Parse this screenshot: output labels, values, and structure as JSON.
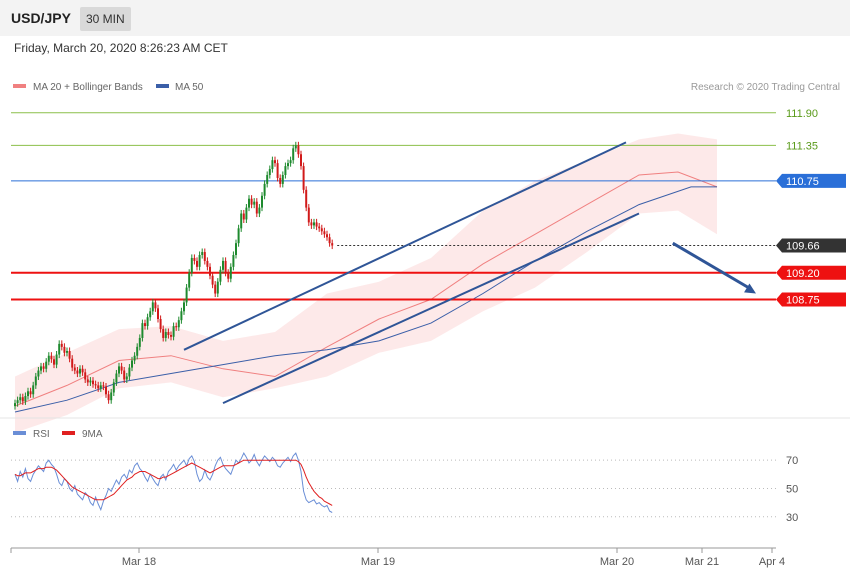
{
  "header": {
    "symbol": "USD/JPY",
    "timeframe": "30 MIN",
    "datetime": "Friday, March 20, 2020 8:26:23 AM CET"
  },
  "legend": {
    "ma20_bb": "MA 20 + Bollinger Bands",
    "ma50": "MA 50",
    "credit": "Research © 2020 Trading Central"
  },
  "rsi_legend": {
    "rsi": "RSI",
    "ma9": "9MA"
  },
  "colors": {
    "bull": "#1e8a2e",
    "bear": "#d11a1a",
    "ma20": "#f08080",
    "ma50": "#3b5fa8",
    "band": "#fde3e3",
    "resistance": "#8cbf4a",
    "pivot": "#2a6fd8",
    "support": "#ee1111",
    "current": "#333333",
    "channel": "#2f5597",
    "rsi": "#6a8ed6",
    "rsi_ma": "#e02020"
  },
  "chart_data": {
    "type": "candlestick",
    "x_labels": [
      "Mar 18",
      "Mar 19",
      "Mar 20",
      "Mar 21",
      "Apr 4"
    ],
    "y_range": [
      106.8,
      112.2
    ],
    "levels": [
      {
        "value": 111.9,
        "label": "111.90",
        "kind": "resistance"
      },
      {
        "value": 111.35,
        "label": "111.35",
        "kind": "resistance"
      },
      {
        "value": 110.75,
        "label": "110.75",
        "kind": "pivot"
      },
      {
        "value": 109.66,
        "label": "109.66",
        "kind": "current"
      },
      {
        "value": 109.2,
        "label": "109.20",
        "kind": "support"
      },
      {
        "value": 108.75,
        "label": "108.75",
        "kind": "support"
      }
    ],
    "close": [
      107.0,
      107.05,
      107.1,
      107.03,
      107.12,
      107.2,
      107.15,
      107.3,
      107.45,
      107.55,
      107.62,
      107.58,
      107.7,
      107.8,
      107.74,
      107.65,
      107.82,
      108.0,
      107.95,
      107.85,
      107.88,
      107.75,
      107.6,
      107.55,
      107.5,
      107.58,
      107.52,
      107.4,
      107.35,
      107.38,
      107.32,
      107.3,
      107.25,
      107.3,
      107.28,
      107.15,
      107.05,
      107.18,
      107.35,
      107.5,
      107.62,
      107.55,
      107.4,
      107.45,
      107.6,
      107.72,
      107.8,
      107.95,
      108.1,
      108.35,
      108.3,
      108.45,
      108.55,
      108.7,
      108.6,
      108.42,
      108.25,
      108.1,
      108.2,
      108.15,
      108.12,
      108.3,
      108.28,
      108.4,
      108.55,
      108.7,
      108.95,
      109.2,
      109.45,
      109.4,
      109.3,
      109.5,
      109.55,
      109.4,
      109.3,
      109.15,
      109.0,
      108.85,
      109.05,
      109.25,
      109.4,
      109.2,
      109.1,
      109.3,
      109.5,
      109.7,
      109.95,
      110.2,
      110.1,
      110.3,
      110.45,
      110.35,
      110.4,
      110.2,
      110.3,
      110.5,
      110.7,
      110.85,
      110.95,
      111.1,
      111.05,
      110.8,
      110.7,
      110.85,
      111.0,
      111.05,
      111.1,
      111.3,
      111.35,
      111.2,
      111.0,
      110.6,
      110.3,
      110.05,
      110.0,
      110.05,
      109.98,
      109.95,
      109.9,
      109.85,
      109.8,
      109.7,
      109.66
    ],
    "ma50_pts": [
      [
        0,
        106.85
      ],
      [
        20,
        107.05
      ],
      [
        40,
        107.35
      ],
      [
        60,
        107.5
      ],
      [
        80,
        107.65
      ],
      [
        100,
        107.8
      ],
      [
        120,
        107.9
      ],
      [
        140,
        108.05
      ],
      [
        160,
        108.35
      ],
      [
        180,
        108.85
      ],
      [
        200,
        109.4
      ],
      [
        220,
        109.9
      ],
      [
        240,
        110.35
      ],
      [
        260,
        110.65
      ],
      [
        270,
        110.65
      ]
    ],
    "ma20_pts": [
      [
        0,
        106.95
      ],
      [
        20,
        107.3
      ],
      [
        40,
        107.72
      ],
      [
        60,
        107.8
      ],
      [
        80,
        107.58
      ],
      [
        100,
        107.45
      ],
      [
        120,
        107.95
      ],
      [
        140,
        108.42
      ],
      [
        160,
        108.75
      ],
      [
        180,
        109.35
      ],
      [
        200,
        109.85
      ],
      [
        220,
        110.35
      ],
      [
        240,
        110.85
      ],
      [
        255,
        110.9
      ],
      [
        270,
        110.65
      ]
    ],
    "band_upper": [
      [
        0,
        107.45
      ],
      [
        20,
        107.85
      ],
      [
        40,
        108.25
      ],
      [
        60,
        108.3
      ],
      [
        80,
        108.05
      ],
      [
        100,
        108.2
      ],
      [
        120,
        108.85
      ],
      [
        140,
        109.05
      ],
      [
        160,
        109.45
      ],
      [
        180,
        110.25
      ],
      [
        200,
        110.75
      ],
      [
        220,
        111.1
      ],
      [
        240,
        111.45
      ],
      [
        255,
        111.55
      ],
      [
        270,
        111.45
      ]
    ],
    "band_lower": [
      [
        0,
        106.5
      ],
      [
        20,
        106.8
      ],
      [
        40,
        107.25
      ],
      [
        60,
        107.35
      ],
      [
        80,
        107.1
      ],
      [
        100,
        107.25
      ],
      [
        120,
        107.45
      ],
      [
        140,
        107.85
      ],
      [
        160,
        108.05
      ],
      [
        180,
        108.55
      ],
      [
        200,
        108.95
      ],
      [
        220,
        109.55
      ],
      [
        240,
        110.2
      ],
      [
        255,
        110.25
      ],
      [
        270,
        109.85
      ]
    ],
    "channel_upper": [
      [
        65,
        107.9
      ],
      [
        235,
        111.4
      ]
    ],
    "channel_lower": [
      [
        80,
        107.0
      ],
      [
        240,
        110.2
      ]
    ],
    "projection": [
      [
        253,
        109.7
      ],
      [
        285,
        108.85
      ]
    ],
    "rsi": {
      "levels": [
        70,
        50,
        30
      ],
      "y_range": [
        15,
        80
      ],
      "values": [
        60,
        55,
        62,
        58,
        64,
        57,
        55,
        60,
        63,
        66,
        64,
        62,
        68,
        70,
        67,
        65,
        60,
        54,
        52,
        57,
        55,
        50,
        48,
        52,
        46,
        44,
        42,
        47,
        45,
        40,
        38,
        44,
        39,
        35,
        41,
        45,
        50,
        48,
        52,
        56,
        53,
        58,
        60,
        57,
        63,
        61,
        66,
        68,
        64,
        62,
        58,
        55,
        60,
        57,
        54,
        52,
        58,
        60,
        56,
        62,
        64,
        67,
        63,
        66,
        68,
        70,
        66,
        71,
        73,
        69,
        60,
        55,
        57,
        63,
        58,
        56,
        60,
        66,
        70,
        72,
        67,
        64,
        62,
        60,
        65,
        70,
        68,
        71,
        75,
        72,
        68,
        70,
        74,
        69,
        66,
        70,
        73,
        71,
        69,
        72,
        70,
        66,
        65,
        68,
        70,
        72,
        69,
        73,
        75,
        70,
        62,
        48,
        42,
        40,
        41,
        42,
        39,
        40,
        38,
        37,
        38,
        34,
        33
      ],
      "ma9": [
        60,
        59,
        59,
        60,
        61,
        61,
        61,
        62,
        63,
        64,
        64,
        64,
        65,
        65,
        65,
        64,
        63,
        61,
        59,
        57,
        55,
        53,
        51,
        50,
        49,
        48,
        47,
        46,
        45,
        44,
        43,
        42,
        42,
        42,
        42,
        43,
        44,
        45,
        46,
        48,
        50,
        52,
        54,
        56,
        57,
        58,
        60,
        61,
        62,
        62,
        62,
        61,
        60,
        59,
        58,
        57,
        57,
        58,
        58,
        59,
        60,
        61,
        62,
        63,
        64,
        65,
        66,
        67,
        68,
        67,
        66,
        65,
        64,
        63,
        62,
        61,
        62,
        63,
        64,
        65,
        66,
        66,
        66,
        66,
        66,
        67,
        68,
        69,
        70,
        70,
        70,
        70,
        70,
        70,
        70,
        70,
        70,
        70,
        70,
        70,
        70,
        70,
        70,
        70,
        70,
        70,
        70,
        70,
        70,
        69,
        67,
        63,
        58,
        54,
        51,
        48,
        46,
        44,
        43,
        41,
        40,
        39,
        38
      ]
    }
  }
}
